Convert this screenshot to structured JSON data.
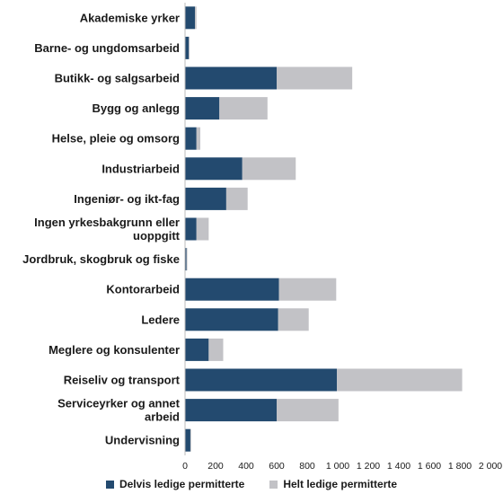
{
  "chart_data": {
    "type": "bar",
    "orientation": "horizontal",
    "stacked": true,
    "categories": [
      "Akademiske yrker",
      "Barne- og ungdomsarbeid",
      "Butikk- og salgsarbeid",
      "Bygg og anlegg",
      "Helse, pleie og omsorg",
      "Industriarbeid",
      "Ingeniør- og ikt-fag",
      "Ingen yrkesbakgrunn eller uoppgitt",
      "Jordbruk, skogbruk og fiske",
      "Kontorarbeid",
      "Ledere",
      "Meglere og konsulenter",
      "Reiseliv og transport",
      "Serviceyrker og annet arbeid",
      "Undervisning"
    ],
    "category_lines": [
      [
        "Akademiske yrker"
      ],
      [
        "Barne- og ungdomsarbeid"
      ],
      [
        "Butikk- og salgsarbeid"
      ],
      [
        "Bygg og anlegg"
      ],
      [
        "Helse, pleie og omsorg"
      ],
      [
        "Industriarbeid"
      ],
      [
        "Ingeniør- og ikt-fag"
      ],
      [
        "Ingen yrkesbakgrunn eller",
        "uoppgitt"
      ],
      [
        "Jordbruk, skogbruk og fiske"
      ],
      [
        "Kontorarbeid"
      ],
      [
        "Ledere"
      ],
      [
        "Meglere og konsulenter"
      ],
      [
        "Reiseliv og transport"
      ],
      [
        "Serviceyrker og annet",
        "arbeid"
      ],
      [
        "Undervisning"
      ]
    ],
    "series": [
      {
        "name": "Delvis ledige permitterte",
        "color": "#234a6f",
        "values": [
          65,
          25,
          600,
          225,
          75,
          375,
          270,
          75,
          10,
          615,
          610,
          155,
          995,
          600,
          35
        ]
      },
      {
        "name": "Helt ledige permitterte",
        "color": "#c2c2c6",
        "values": [
          10,
          5,
          495,
          315,
          25,
          350,
          140,
          80,
          5,
          375,
          200,
          95,
          820,
          405,
          5
        ]
      }
    ],
    "xlim": [
      0,
      2000
    ],
    "xticks": [
      0,
      200,
      400,
      600,
      800,
      1000,
      1200,
      1400,
      1600,
      1800,
      2000
    ],
    "xtick_labels": [
      "0",
      "200",
      "400",
      "600",
      "800",
      "1 000",
      "1 200",
      "1 400",
      "1 600",
      "1 800",
      "2 000"
    ],
    "grid": false,
    "legend_position": "bottom"
  }
}
